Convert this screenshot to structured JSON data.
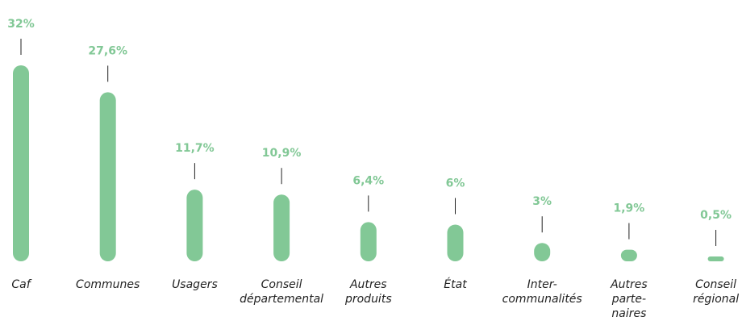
{
  "colors": {
    "bar": "#82c896",
    "value_label": "#82c896",
    "leader_line": "#222222",
    "category_label": "#222222"
  },
  "chart_data": {
    "type": "bar",
    "title": "",
    "xlabel": "",
    "ylabel": "",
    "grid": false,
    "legend": "none",
    "ylim": [
      0,
      32
    ],
    "categories": [
      [
        "Caf"
      ],
      [
        "Communes"
      ],
      [
        "Usagers"
      ],
      [
        "Conseil",
        "départemental"
      ],
      [
        "Autres",
        "produits"
      ],
      [
        "État"
      ],
      [
        "Inter-",
        "communalités"
      ],
      [
        "Autres",
        "parte-",
        "naires"
      ],
      [
        "Conseil",
        "régional"
      ]
    ],
    "values": [
      32,
      27.6,
      11.7,
      10.9,
      6.4,
      6,
      3,
      1.9,
      0.5
    ],
    "value_labels": [
      "32%",
      "27,6%",
      "11,7%",
      "10,9%",
      "6,4%",
      "6%",
      "3%",
      "1,9%",
      "0,5%"
    ]
  }
}
